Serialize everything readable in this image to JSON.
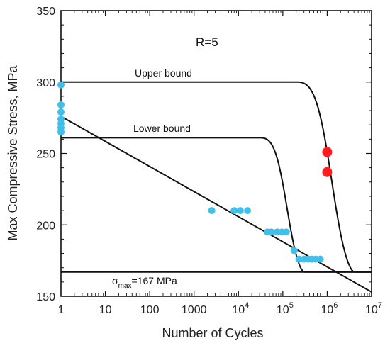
{
  "chart_data": {
    "type": "scatter",
    "title": "",
    "xlabel": "Number of Cycles",
    "ylabel": "Max Compressive Stress, MPa",
    "x_scale": "log",
    "xlim": [
      1,
      10000000
    ],
    "ylim": [
      150,
      350
    ],
    "y_ticks": [
      "150",
      "200",
      "250",
      "300",
      "350"
    ],
    "x_ticks": [
      {
        "value": 1,
        "label": "1",
        "sup": ""
      },
      {
        "value": 10,
        "label": "10",
        "sup": ""
      },
      {
        "value": 100,
        "label": "100",
        "sup": ""
      },
      {
        "value": 1000,
        "label": "1000",
        "sup": ""
      },
      {
        "value": 10000,
        "label": "10",
        "sup": "4"
      },
      {
        "value": 100000,
        "label": "10",
        "sup": "5"
      },
      {
        "value": 1000000,
        "label": "10",
        "sup": "6"
      },
      {
        "value": 10000000,
        "label": "10",
        "sup": "7"
      }
    ],
    "grid": false,
    "annotations": {
      "ratio": "R=5",
      "upper": "Upper bound",
      "lower": "Lower bound",
      "sigma_symbol": "σ",
      "sigma_sub": "max",
      "sigma_value": "=167 MPa"
    },
    "series": [
      {
        "color": "#3fbfea",
        "points": [
          [
            1,
            298
          ],
          [
            1,
            284
          ],
          [
            1,
            279
          ],
          [
            1,
            274
          ],
          [
            1,
            271
          ],
          [
            1,
            268
          ],
          [
            1,
            265
          ],
          [
            2500,
            210
          ],
          [
            8000,
            210
          ],
          [
            11000,
            210
          ],
          [
            16000,
            210
          ],
          [
            45000,
            195
          ],
          [
            55000,
            195
          ],
          [
            75000,
            195
          ],
          [
            95000,
            195
          ],
          [
            120000,
            195
          ],
          [
            180000,
            182
          ],
          [
            230000,
            176
          ],
          [
            300000,
            176
          ],
          [
            380000,
            176
          ],
          [
            450000,
            176
          ],
          [
            550000,
            176
          ],
          [
            700000,
            176
          ]
        ]
      },
      {
        "color": "#ff1c1c",
        "points": [
          [
            1000000,
            251
          ],
          [
            1000000,
            237
          ]
        ]
      }
    ],
    "lines": [
      {
        "kind": "upper_bound",
        "plateau": 300,
        "floor": 167,
        "knee_start": 200000,
        "drop_end": 4000000
      },
      {
        "kind": "lower_bound",
        "plateau": 261,
        "floor": 167,
        "knee_start": 30000,
        "drop_end": 300000
      },
      {
        "kind": "sn_line",
        "x": [
          1,
          10000000
        ],
        "y": [
          276,
          153
        ]
      },
      {
        "kind": "endurance_limit",
        "y": 167
      }
    ]
  }
}
